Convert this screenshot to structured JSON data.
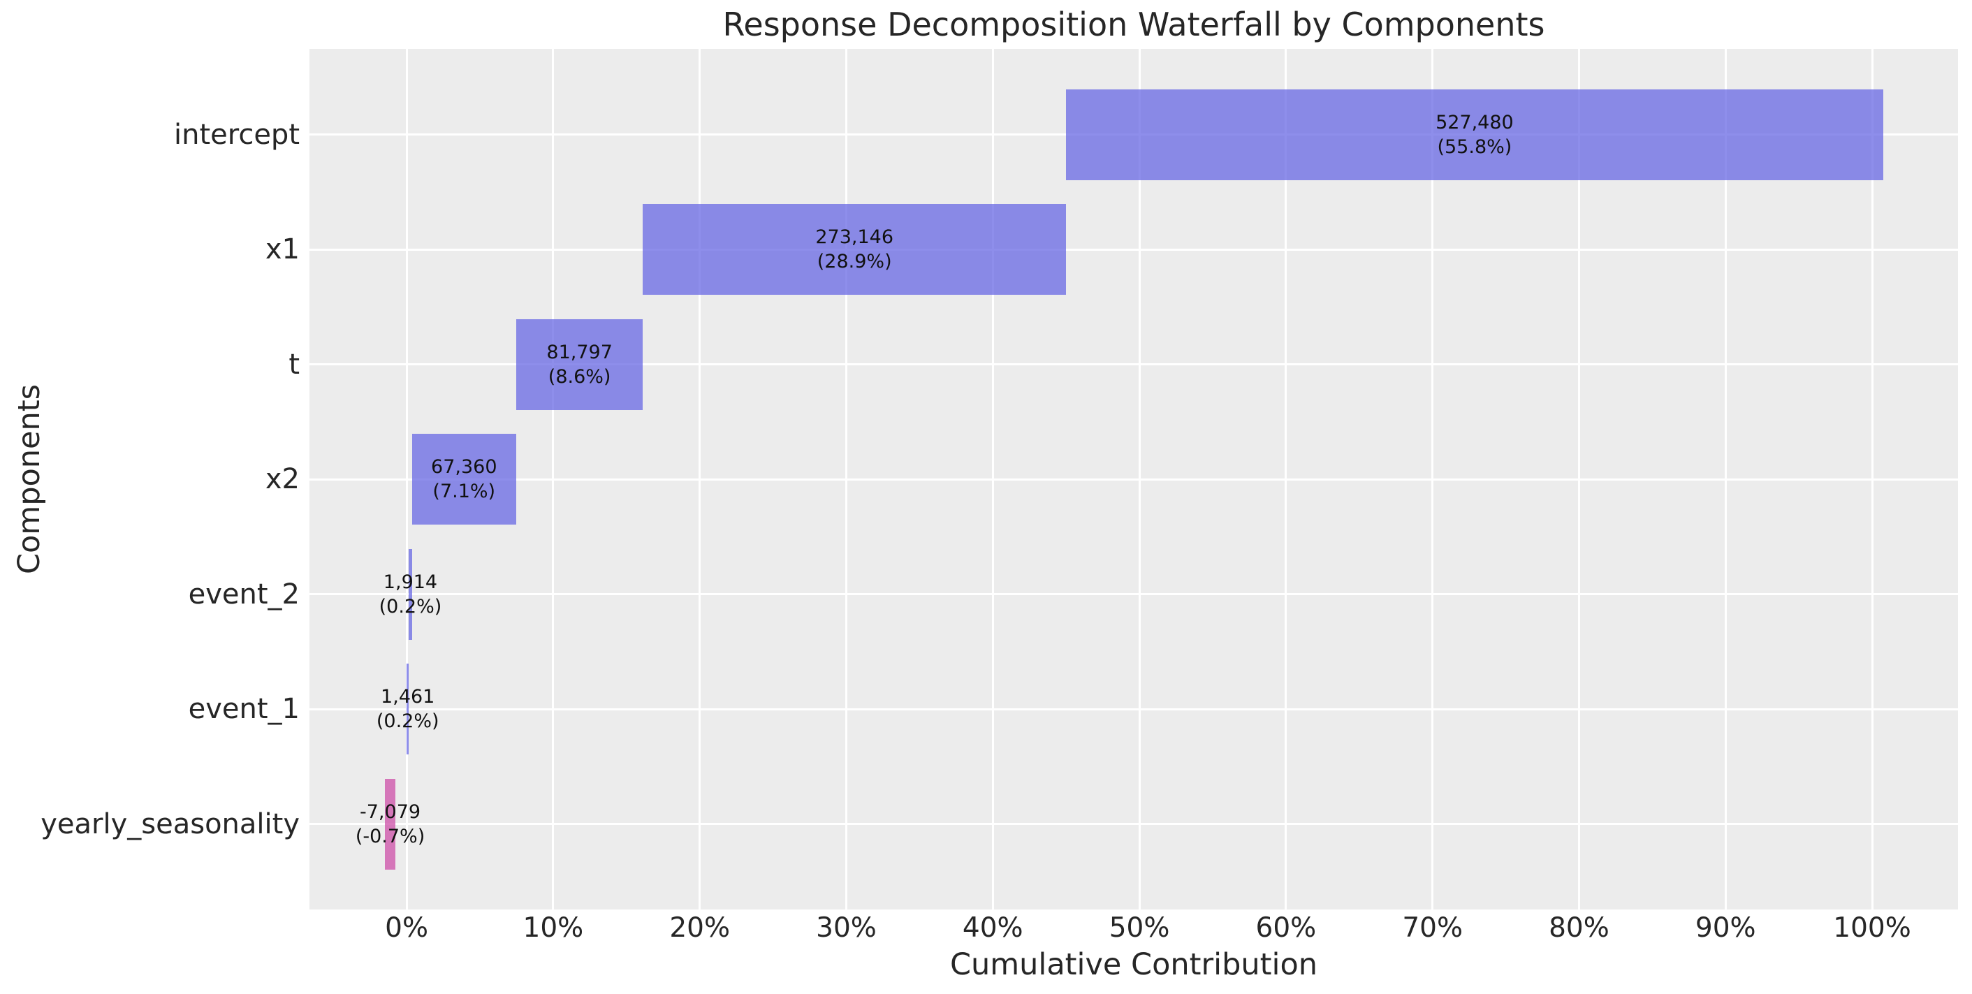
{
  "chart_data": {
    "type": "bar",
    "subtype": "waterfall",
    "orientation": "horizontal",
    "title": "Response Decomposition Waterfall by Components",
    "xlabel": "Cumulative Contribution",
    "ylabel": "Components",
    "categories": [
      "intercept",
      "x1",
      "t",
      "x2",
      "event_2",
      "event_1",
      "yearly_seasonality"
    ],
    "values": [
      527480,
      273146,
      81797,
      67360,
      1914,
      1461,
      -7079
    ],
    "value_labels": [
      "527,480",
      "273,146",
      "81,797",
      "67,360",
      "1,914",
      "1,461",
      "-7,079"
    ],
    "pct_labels": [
      "(55.8%)",
      "(28.9%)",
      "(8.6%)",
      "(7.1%)",
      "(0.2%)",
      "(0.2%)",
      "(-0.7%)"
    ],
    "percentages": [
      55.8,
      28.9,
      8.6,
      7.1,
      0.2,
      0.2,
      -0.7
    ],
    "x_tick_labels": [
      "0%",
      "10%",
      "20%",
      "30%",
      "40%",
      "50%",
      "60%",
      "70%",
      "80%",
      "90%",
      "100%"
    ],
    "x_tick_values": [
      0,
      10,
      20,
      30,
      40,
      50,
      60,
      70,
      80,
      90,
      100
    ],
    "xlim": [
      -6.63,
      105.86
    ],
    "grid": true,
    "legend": false,
    "colors": {
      "positive_bar": "#6868e4",
      "positive_bar_rgba": "rgba(104,104,228,0.75)",
      "negative_bar": "#ce55aa",
      "negative_bar_rgba": "rgba(206,85,170,0.78)",
      "plot_background": "#ececec",
      "figure_background": "#ffffff",
      "gridline": "#ffffff",
      "text": "#262626"
    }
  }
}
